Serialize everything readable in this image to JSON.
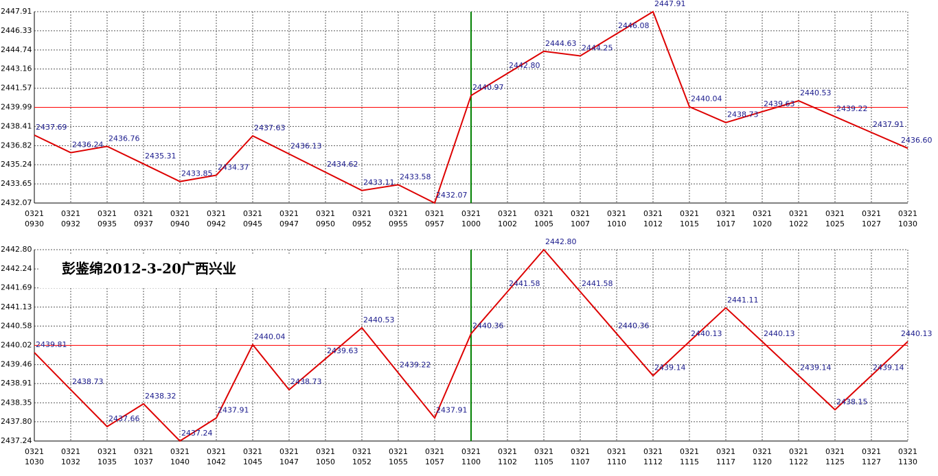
{
  "chart_data": [
    {
      "type": "line",
      "categories": [
        [
          "0321",
          "0930"
        ],
        [
          "0321",
          "0932"
        ],
        [
          "0321",
          "0935"
        ],
        [
          "0321",
          "0937"
        ],
        [
          "0321",
          "0940"
        ],
        [
          "0321",
          "0942"
        ],
        [
          "0321",
          "0945"
        ],
        [
          "0321",
          "0947"
        ],
        [
          "0321",
          "0950"
        ],
        [
          "0321",
          "0952"
        ],
        [
          "0321",
          "0955"
        ],
        [
          "0321",
          "0957"
        ],
        [
          "0321",
          "1000"
        ],
        [
          "0321",
          "1002"
        ],
        [
          "0321",
          "1005"
        ],
        [
          "0321",
          "1007"
        ],
        [
          "0321",
          "1010"
        ],
        [
          "0321",
          "1012"
        ],
        [
          "0321",
          "1015"
        ],
        [
          "0321",
          "1017"
        ],
        [
          "0321",
          "1020"
        ],
        [
          "0321",
          "1022"
        ],
        [
          "0321",
          "1025"
        ],
        [
          "0321",
          "1027"
        ],
        [
          "0321",
          "1030"
        ]
      ],
      "values": [
        2437.69,
        2436.24,
        2436.76,
        2435.31,
        2433.85,
        2434.37,
        2437.63,
        2436.13,
        2434.62,
        2433.11,
        2433.58,
        2432.07,
        2440.97,
        2442.8,
        2444.63,
        2444.25,
        2446.08,
        2447.91,
        2440.04,
        2438.73,
        2439.63,
        2440.53,
        2439.22,
        2437.91,
        2436.6
      ],
      "value_labels": [
        "2437.69",
        "2436.24",
        "2436.76",
        "2435.31",
        "2433.85",
        "2434.37",
        "2437.63",
        "2436.13",
        "2434.62",
        "2433.11",
        "2433.58",
        "2432.07",
        "2440.97",
        "2442.80",
        "2444.63",
        "2444.25",
        "2446.08",
        "2447.91",
        "2440.04",
        "2438.73",
        "2439.63",
        "2440.53",
        "2439.22",
        "2437.91",
        "2436.60"
      ],
      "color": "#dd0000",
      "ylim": [
        2432.07,
        2447.91
      ],
      "yticks": [
        2447.91,
        2446.33,
        2444.74,
        2443.16,
        2441.57,
        2439.99,
        2438.41,
        2436.82,
        2435.24,
        2433.65,
        2432.07
      ],
      "grid": true,
      "hline": 2439.99,
      "hline_color": "#ff0000",
      "vline_at": "1000",
      "vline_color": "#008000"
    },
    {
      "type": "line",
      "annotation": "彭鉴绵2012-3-20广西兴业",
      "categories": [
        [
          "0321",
          "1030"
        ],
        [
          "0321",
          "1032"
        ],
        [
          "0321",
          "1035"
        ],
        [
          "0321",
          "1037"
        ],
        [
          "0321",
          "1040"
        ],
        [
          "0321",
          "1042"
        ],
        [
          "0321",
          "1045"
        ],
        [
          "0321",
          "1047"
        ],
        [
          "0321",
          "1050"
        ],
        [
          "0321",
          "1052"
        ],
        [
          "0321",
          "1055"
        ],
        [
          "0321",
          "1057"
        ],
        [
          "0321",
          "1100"
        ],
        [
          "0321",
          "1102"
        ],
        [
          "0321",
          "1105"
        ],
        [
          "0321",
          "1107"
        ],
        [
          "0321",
          "1110"
        ],
        [
          "0321",
          "1112"
        ],
        [
          "0321",
          "1115"
        ],
        [
          "0321",
          "1117"
        ],
        [
          "0321",
          "1120"
        ],
        [
          "0321",
          "1122"
        ],
        [
          "0321",
          "1125"
        ],
        [
          "0321",
          "1127"
        ],
        [
          "0321",
          "1130"
        ]
      ],
      "values": [
        2439.81,
        2438.73,
        2437.66,
        2438.32,
        2437.24,
        2437.91,
        2440.04,
        2438.73,
        2439.63,
        2440.53,
        2439.22,
        2437.91,
        2440.36,
        2441.58,
        2442.8,
        2441.58,
        2440.36,
        2439.14,
        2440.13,
        2441.11,
        2440.13,
        2439.14,
        2438.15,
        2439.14,
        2440.13
      ],
      "value_labels": [
        "2439.81",
        "2438.73",
        "2437.66",
        "2438.32",
        "2437.24",
        "2437.91",
        "2440.04",
        "2438.73",
        "2439.63",
        "2440.53",
        "2439.22",
        "2437.91",
        "2440.36",
        "2441.58",
        "2442.80",
        "2441.58",
        "2440.36",
        "2439.14",
        "2440.13",
        "2441.11",
        "2440.13",
        "2439.14",
        "2438.15",
        "2439.14",
        "2440.13"
      ],
      "color": "#dd0000",
      "ylim": [
        2437.24,
        2442.8
      ],
      "yticks": [
        {
          "value": 2442.8,
          "label": "2442.80"
        },
        2442.24,
        2441.69,
        2441.13,
        2440.58,
        2440.02,
        2439.46,
        2438.91,
        2438.35,
        {
          "value": 2437.8,
          "label": "2437.80"
        },
        2437.24
      ],
      "grid": true,
      "hline": 2440.02,
      "hline_color": "#ff0000",
      "vline_at": "1100",
      "vline_color": "#008000"
    }
  ]
}
